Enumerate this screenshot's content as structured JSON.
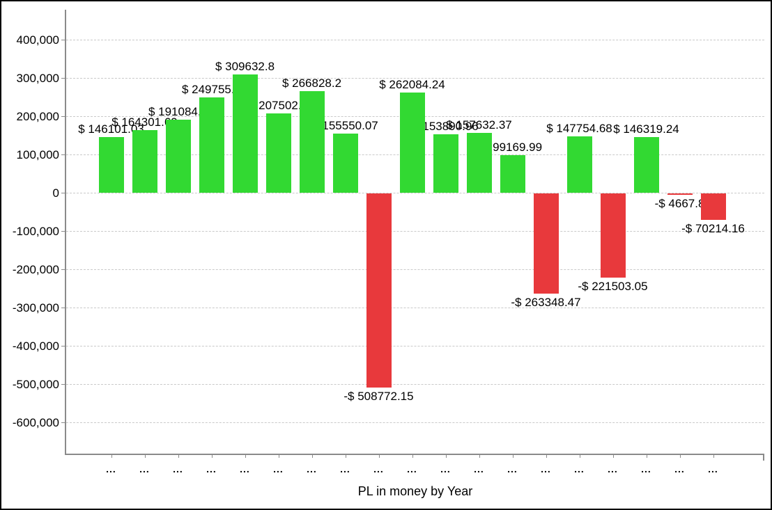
{
  "chart_data": {
    "type": "bar",
    "title": "",
    "xlabel": "PL in money by Year",
    "ylabel": "",
    "categories": [
      "...",
      "...",
      "...",
      "...",
      "...",
      "...",
      "...",
      "...",
      "...",
      "...",
      "...",
      "...",
      "...",
      "...",
      "...",
      "...",
      "...",
      "...",
      "..."
    ],
    "values": [
      146101.03,
      164301.69,
      191084.8,
      249755.3,
      309632.8,
      207502.1,
      266828.2,
      155550.07,
      -508772.15,
      262084.24,
      153890.96,
      157632.37,
      99169.99,
      -263348.47,
      147754.68,
      -221503.05,
      146319.24,
      -4667.8,
      -70214.16
    ],
    "bar_labels": [
      "$ 146101.03",
      "$ 164301.69",
      "$ 191084.8",
      "$ 249755.3",
      "$ 309632.8",
      "$ 207502.1",
      "$ 266828.2",
      "$ 155550.07",
      "-$ 508772.15",
      "$ 262084.24",
      "$ 153890.96",
      "$ 157632.37",
      "$ 99169.99",
      "-$ 263348.47",
      "$ 147754.68",
      "-$ 221503.05",
      "$ 146319.24",
      "-$ 4667.8",
      "-$ 70214.16"
    ],
    "y_ticks": [
      {
        "value": 400000,
        "label": "400,000"
      },
      {
        "value": 300000,
        "label": "300,000"
      },
      {
        "value": 200000,
        "label": "200,000"
      },
      {
        "value": 100000,
        "label": "100,000"
      },
      {
        "value": 0,
        "label": "0"
      },
      {
        "value": -100000,
        "label": "-100,000"
      },
      {
        "value": -200000,
        "label": "-200,000"
      },
      {
        "value": -300000,
        "label": "-300,000"
      },
      {
        "value": -400000,
        "label": "-400,000"
      },
      {
        "value": -500000,
        "label": "-500,000"
      },
      {
        "value": -600000,
        "label": "-600,000"
      }
    ],
    "ylim": [
      -680000,
      480000
    ],
    "grid": "horizontal-dashed",
    "legend": "none",
    "colors": {
      "positive": "#32D932",
      "negative": "#E8393C",
      "gridline": "#C9C9C9",
      "axis": "#8A8A8A",
      "label_text": "#000000"
    }
  }
}
